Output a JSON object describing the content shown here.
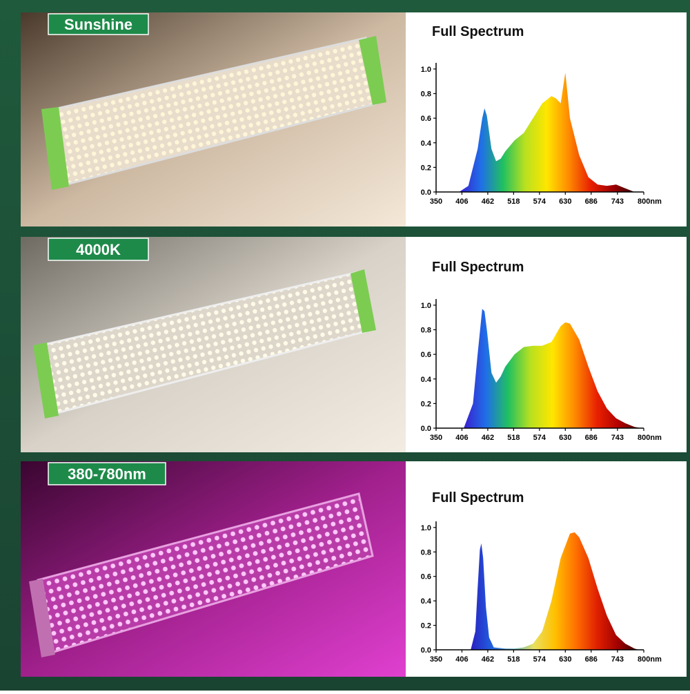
{
  "photos": [
    {
      "label": "Sunshine"
    },
    {
      "label": "4000K"
    },
    {
      "label": "380-780nm"
    }
  ],
  "chart_data": [
    {
      "type": "area",
      "title": "Full Spectrum",
      "x": [
        400,
        420,
        440,
        450,
        455,
        460,
        470,
        480,
        490,
        500,
        520,
        540,
        560,
        580,
        600,
        610,
        620,
        630,
        640,
        660,
        680,
        700,
        720,
        740,
        760,
        780
      ],
      "values": [
        0,
        0.05,
        0.35,
        0.6,
        0.68,
        0.62,
        0.35,
        0.25,
        0.27,
        0.33,
        0.42,
        0.48,
        0.6,
        0.72,
        0.78,
        0.76,
        0.72,
        0.97,
        0.6,
        0.3,
        0.12,
        0.06,
        0.05,
        0.06,
        0.03,
        0
      ],
      "xlim": [
        350,
        800
      ],
      "ylim": [
        0,
        1.05
      ],
      "xticks": [
        350,
        406,
        462,
        518,
        574,
        630,
        686,
        743,
        {
          "value": 800,
          "label": "800nm"
        }
      ],
      "yticks": [
        {
          "value": 0,
          "label": "0.0"
        },
        0.2,
        0.4,
        0.6,
        0.8,
        {
          "value": 1,
          "label": "1.0"
        }
      ],
      "colors": [
        "#3a1fd0",
        "#1f6fe8",
        "#20c060",
        "#b8e020",
        "#ffe600",
        "#ff8a00",
        "#e82000",
        "#a00000",
        "#300000"
      ]
    },
    {
      "type": "area",
      "title": "Full Spectrum",
      "x": [
        410,
        430,
        440,
        450,
        455,
        460,
        470,
        480,
        490,
        500,
        520,
        540,
        560,
        580,
        600,
        620,
        630,
        640,
        660,
        680,
        700,
        720,
        740,
        760,
        780,
        795
      ],
      "values": [
        0,
        0.2,
        0.6,
        0.97,
        0.95,
        0.8,
        0.45,
        0.37,
        0.42,
        0.5,
        0.6,
        0.66,
        0.67,
        0.67,
        0.7,
        0.83,
        0.86,
        0.85,
        0.72,
        0.5,
        0.3,
        0.16,
        0.08,
        0.04,
        0.01,
        0
      ],
      "xlim": [
        350,
        800
      ],
      "ylim": [
        0,
        1.05
      ],
      "xticks": [
        350,
        406,
        462,
        518,
        574,
        630,
        686,
        743,
        {
          "value": 800,
          "label": "800nm"
        }
      ],
      "yticks": [
        {
          "value": 0,
          "label": "0.0"
        },
        0.2,
        0.4,
        0.6,
        0.8,
        {
          "value": 1,
          "label": "1.0"
        }
      ],
      "colors": [
        "#3a1fd0",
        "#1f6fe8",
        "#20c060",
        "#b8e020",
        "#ffe600",
        "#ff8a00",
        "#e82000",
        "#b00000",
        "#400000"
      ]
    },
    {
      "type": "area",
      "title": "Full Spectrum",
      "x": [
        425,
        435,
        440,
        445,
        448,
        452,
        458,
        465,
        475,
        500,
        520,
        540,
        560,
        580,
        600,
        620,
        640,
        650,
        660,
        680,
        700,
        720,
        740,
        760,
        780,
        790
      ],
      "values": [
        0,
        0.15,
        0.5,
        0.82,
        0.87,
        0.75,
        0.35,
        0.1,
        0.02,
        0.01,
        0.01,
        0.02,
        0.05,
        0.15,
        0.4,
        0.75,
        0.95,
        0.96,
        0.92,
        0.75,
        0.5,
        0.28,
        0.12,
        0.05,
        0.01,
        0
      ],
      "xlim": [
        350,
        800
      ],
      "ylim": [
        0,
        1.05
      ],
      "xticks": [
        350,
        406,
        462,
        518,
        574,
        630,
        686,
        743,
        {
          "value": 800,
          "label": "800nm"
        }
      ],
      "yticks": [
        {
          "value": 0,
          "label": "0.0"
        },
        0.2,
        0.4,
        0.6,
        0.8,
        {
          "value": 1,
          "label": "1.0"
        }
      ],
      "colors": [
        "#2a20c0",
        "#2060e0",
        "#60b0c0",
        "#e8e060",
        "#ffc000",
        "#ff7000",
        "#e02000",
        "#a00000",
        "#300000"
      ]
    }
  ]
}
